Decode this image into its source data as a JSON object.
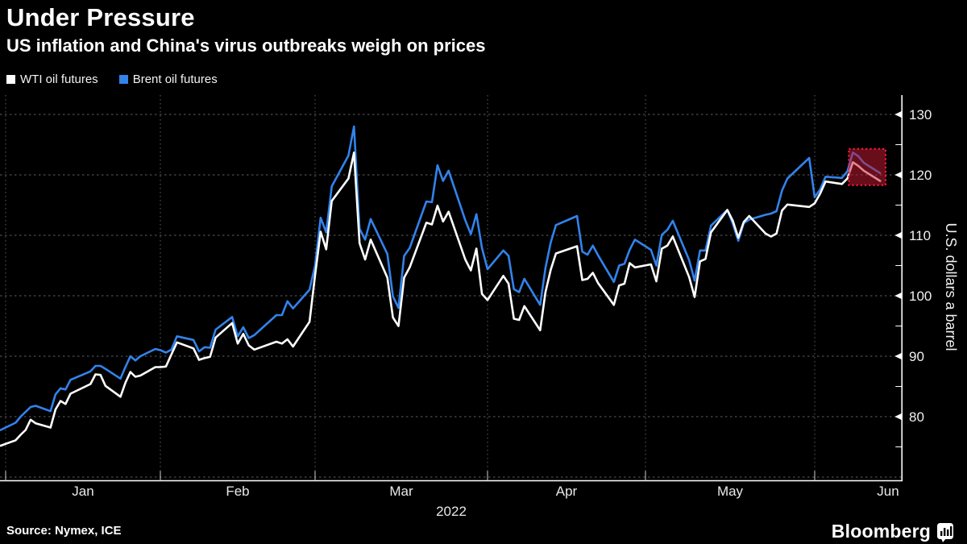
{
  "header": {
    "title": "Under Pressure",
    "subtitle": "US inflation and China's virus outbreaks weigh on prices"
  },
  "legend": [
    {
      "label": "WTI oil futures",
      "color": "#ffffff"
    },
    {
      "label": "Brent oil futures",
      "color": "#3283ec"
    }
  ],
  "footer": {
    "source": "Source: Nymex, ICE",
    "branding": "Bloomberg"
  },
  "chart_data": {
    "type": "line",
    "title": "Under Pressure",
    "subtitle": "US inflation and China's virus outbreaks weigh on prices",
    "xlabel": "2022",
    "ylabel": "U.S. dollars a barrel",
    "x_tick_labels": [
      "Jan",
      "Feb",
      "Mar",
      "Apr",
      "May",
      "Jun"
    ],
    "y_ticks": [
      80,
      90,
      100,
      110,
      120,
      130
    ],
    "ylim": [
      69.5,
      133.2
    ],
    "grid": true,
    "legend_position": "top-left",
    "axis_color": "#ffffff",
    "grid_color": "#5f5f5f",
    "background_color": "#000000",
    "dates": [
      "12-31",
      "01-03",
      "01-04",
      "01-05",
      "01-06",
      "01-07",
      "01-10",
      "01-11",
      "01-12",
      "01-13",
      "01-14",
      "01-18",
      "01-19",
      "01-20",
      "01-21",
      "01-24",
      "01-25",
      "01-26",
      "01-27",
      "01-28",
      "01-31",
      "02-01",
      "02-02",
      "02-03",
      "02-04",
      "02-07",
      "02-08",
      "02-09",
      "02-10",
      "02-11",
      "02-14",
      "02-15",
      "02-16",
      "02-17",
      "02-18",
      "02-22",
      "02-23",
      "02-24",
      "02-25",
      "02-28",
      "03-01",
      "03-02",
      "03-03",
      "03-04",
      "03-07",
      "03-08",
      "03-09",
      "03-10",
      "03-11",
      "03-14",
      "03-15",
      "03-16",
      "03-17",
      "03-18",
      "03-21",
      "03-22",
      "03-23",
      "03-24",
      "03-25",
      "03-28",
      "03-29",
      "03-30",
      "03-31",
      "04-01",
      "04-04",
      "04-05",
      "04-06",
      "04-07",
      "04-08",
      "04-11",
      "04-12",
      "04-13",
      "04-14",
      "04-18",
      "04-19",
      "04-20",
      "04-21",
      "04-22",
      "04-25",
      "04-26",
      "04-27",
      "04-28",
      "04-29",
      "05-02",
      "05-03",
      "05-04",
      "05-05",
      "05-06",
      "05-09",
      "05-10",
      "05-11",
      "05-12",
      "05-13",
      "05-16",
      "05-17",
      "05-18",
      "05-19",
      "05-20",
      "05-23",
      "05-24",
      "05-25",
      "05-26",
      "05-27",
      "05-31",
      "06-01",
      "06-02",
      "06-03",
      "06-06",
      "06-07",
      "06-08",
      "06-09",
      "06-10",
      "06-13"
    ],
    "series": [
      {
        "name": "WTI oil futures",
        "color": "#ffffff",
        "values": [
          75.2,
          76.1,
          77.0,
          77.8,
          79.5,
          78.9,
          78.2,
          81.2,
          82.6,
          82.1,
          83.8,
          85.4,
          87.0,
          86.9,
          85.1,
          83.3,
          85.6,
          87.4,
          86.6,
          86.8,
          88.2,
          88.2,
          88.3,
          90.3,
          92.3,
          91.3,
          89.4,
          89.7,
          89.9,
          93.1,
          95.5,
          92.1,
          93.7,
          91.8,
          91.1,
          92.4,
          92.1,
          92.8,
          91.6,
          95.7,
          103.4,
          110.6,
          107.7,
          115.7,
          119.4,
          123.7,
          108.7,
          106.0,
          109.3,
          103.0,
          96.4,
          95.0,
          103.0,
          104.7,
          112.1,
          111.8,
          114.9,
          112.3,
          113.9,
          106.0,
          104.2,
          107.8,
          100.3,
          99.3,
          103.3,
          102.0,
          96.2,
          96.0,
          98.3,
          94.3,
          100.6,
          104.3,
          107.0,
          108.2,
          102.6,
          102.8,
          103.8,
          102.1,
          98.5,
          101.7,
          102.0,
          105.4,
          104.7,
          105.2,
          102.4,
          107.8,
          108.3,
          109.8,
          103.1,
          99.8,
          105.7,
          106.1,
          110.5,
          114.2,
          112.4,
          109.6,
          112.2,
          113.2,
          110.3,
          109.8,
          110.3,
          114.1,
          115.1,
          114.7,
          115.3,
          116.9,
          118.9,
          118.5,
          119.4,
          122.1,
          121.5,
          120.7,
          119.0
        ]
      },
      {
        "name": "Brent oil futures",
        "color": "#3283ec",
        "values": [
          77.8,
          79.0,
          80.0,
          80.8,
          81.6,
          81.8,
          80.9,
          83.7,
          84.7,
          84.5,
          86.1,
          87.5,
          88.4,
          88.4,
          87.9,
          86.3,
          88.2,
          90.0,
          89.3,
          90.0,
          91.2,
          91.0,
          90.6,
          91.1,
          93.3,
          92.7,
          90.8,
          91.5,
          91.4,
          94.4,
          96.5,
          93.3,
          94.8,
          93.0,
          93.5,
          96.8,
          96.8,
          99.1,
          97.9,
          101.0,
          105.0,
          112.9,
          110.5,
          118.1,
          123.2,
          128.0,
          111.1,
          109.3,
          112.7,
          106.9,
          99.9,
          98.0,
          106.6,
          107.9,
          115.6,
          115.5,
          121.6,
          119.0,
          120.7,
          112.5,
          110.2,
          113.5,
          107.9,
          104.4,
          107.5,
          106.6,
          101.1,
          100.6,
          102.8,
          98.5,
          104.6,
          108.8,
          111.7,
          113.2,
          107.3,
          106.8,
          108.3,
          106.7,
          102.3,
          105.0,
          105.3,
          107.6,
          109.3,
          107.6,
          105.0,
          110.1,
          110.9,
          112.4,
          105.9,
          102.5,
          107.5,
          107.5,
          111.6,
          114.2,
          111.9,
          109.1,
          112.0,
          112.6,
          113.4,
          113.6,
          114.0,
          117.4,
          119.4,
          122.8,
          116.3,
          117.6,
          119.7,
          119.5,
          120.6,
          123.7,
          123.1,
          122.0,
          120.3
        ]
      }
    ],
    "highlight": {
      "label": "recent-decline",
      "date_start": "06-08",
      "date_end": "06-14",
      "value_min": 118.3,
      "value_max": 124.3,
      "fill": "rgba(200,25,50,0.52)",
      "border_color": "#ee1a3c"
    }
  }
}
